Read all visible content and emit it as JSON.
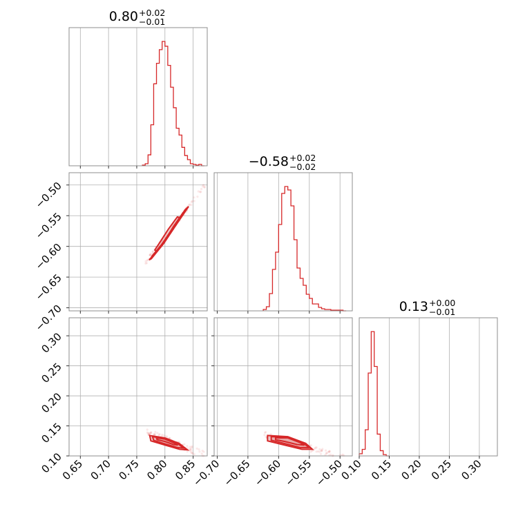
{
  "chart_data": {
    "type": "corner",
    "parameters": [
      {
        "index": 0,
        "title": {
          "median": "0.80",
          "plus": "+0.02",
          "minus": "−0.01"
        },
        "range": [
          0.63,
          0.875
        ],
        "ticks": [
          0.65,
          0.7,
          0.75,
          0.8,
          0.85
        ],
        "tick_labels": [
          "0.65",
          "0.70",
          "0.75",
          "0.80",
          "0.85"
        ],
        "histogram": {
          "bin_edges": [
            0.76,
            0.765,
            0.77,
            0.775,
            0.78,
            0.785,
            0.79,
            0.795,
            0.8,
            0.805,
            0.81,
            0.815,
            0.82,
            0.825,
            0.83,
            0.835,
            0.84,
            0.845,
            0.85,
            0.855,
            0.86,
            0.865,
            0.87
          ],
          "counts": [
            1,
            3,
            16,
            60,
            120,
            150,
            170,
            182,
            175,
            147,
            115,
            85,
            55,
            45,
            27,
            15,
            9,
            3,
            2,
            1,
            2,
            0
          ]
        }
      },
      {
        "index": 1,
        "title": {
          "median": "−0.58",
          "plus": "+0.02",
          "minus": "−0.02"
        },
        "range": [
          -0.705,
          -0.48
        ],
        "ticks": [
          -0.7,
          -0.65,
          -0.6,
          -0.55,
          -0.5
        ],
        "tick_labels": [
          "−0.70",
          "−0.65",
          "−0.60",
          "−0.55",
          "−0.50"
        ],
        "histogram": {
          "bin_edges": [
            -0.625,
            -0.62,
            -0.615,
            -0.61,
            -0.605,
            -0.6,
            -0.595,
            -0.59,
            -0.585,
            -0.58,
            -0.575,
            -0.57,
            -0.565,
            -0.56,
            -0.555,
            -0.55,
            -0.545,
            -0.54,
            -0.535,
            -0.53,
            -0.525,
            -0.52,
            -0.515,
            -0.51,
            -0.505,
            -0.5,
            -0.495,
            -0.49
          ],
          "counts": [
            2,
            6,
            25,
            60,
            85,
            125,
            170,
            180,
            175,
            152,
            103,
            62,
            47,
            37,
            24,
            18,
            10,
            10,
            5,
            3,
            2,
            2,
            1,
            1,
            1,
            1,
            0
          ]
        }
      },
      {
        "index": 2,
        "title": {
          "median": "0.13",
          "plus": "+0.00",
          "minus": "−0.01"
        },
        "range": [
          0.1,
          0.33
        ],
        "ticks": [
          0.1,
          0.15,
          0.2,
          0.25,
          0.3
        ],
        "tick_labels": [
          "0.10",
          "0.15",
          "0.20",
          "0.25",
          "0.30"
        ],
        "histogram": {
          "bin_edges": [
            0.1,
            0.105,
            0.11,
            0.115,
            0.12,
            0.125,
            0.13,
            0.135,
            0.14,
            0.145,
            0.15
          ],
          "counts": [
            5,
            15,
            60,
            190,
            285,
            205,
            50,
            12,
            3,
            0
          ]
        }
      }
    ],
    "pairs": [
      {
        "x_param": 0,
        "y_param": 1,
        "contours": [
          [
            [
              0.785,
              -0.608
            ],
            [
              0.8,
              -0.59
            ],
            [
              0.815,
              -0.568
            ],
            [
              0.826,
              -0.553
            ],
            [
              0.822,
              -0.552
            ],
            [
              0.806,
              -0.572
            ],
            [
              0.792,
              -0.592
            ],
            [
              0.782,
              -0.606
            ]
          ],
          [
            [
              0.776,
              -0.617
            ],
            [
              0.795,
              -0.596
            ],
            [
              0.814,
              -0.57
            ],
            [
              0.832,
              -0.545
            ],
            [
              0.836,
              -0.542
            ],
            [
              0.82,
              -0.563
            ],
            [
              0.8,
              -0.59
            ],
            [
              0.781,
              -0.614
            ]
          ],
          [
            [
              0.772,
              -0.622
            ],
            [
              0.792,
              -0.601
            ],
            [
              0.815,
              -0.569
            ],
            [
              0.836,
              -0.54
            ],
            [
              0.842,
              -0.535
            ],
            [
              0.822,
              -0.562
            ],
            [
              0.798,
              -0.595
            ],
            [
              0.776,
              -0.62
            ]
          ]
        ],
        "scatter_band": {
          "x": [
            0.765,
            0.875
          ],
          "slope": 1.2,
          "intercept": -1.5456,
          "spread": 0.004
        }
      },
      {
        "x_param": 0,
        "y_param": 2,
        "contours": [
          [
            [
              0.785,
              0.13
            ],
            [
              0.8,
              0.128
            ],
            [
              0.815,
              0.122
            ],
            [
              0.823,
              0.118
            ],
            [
              0.815,
              0.119
            ],
            [
              0.8,
              0.124
            ],
            [
              0.786,
              0.127
            ]
          ],
          [
            [
              0.778,
              0.132
            ],
            [
              0.8,
              0.129
            ],
            [
              0.822,
              0.121
            ],
            [
              0.833,
              0.113
            ],
            [
              0.822,
              0.114
            ],
            [
              0.8,
              0.12
            ],
            [
              0.78,
              0.126
            ]
          ],
          [
            [
              0.773,
              0.134
            ],
            [
              0.8,
              0.13
            ],
            [
              0.825,
              0.121
            ],
            [
              0.84,
              0.11
            ],
            [
              0.826,
              0.111
            ],
            [
              0.8,
              0.118
            ],
            [
              0.775,
              0.125
            ]
          ]
        ],
        "scatter_band": {
          "x": [
            0.768,
            0.87
          ],
          "slope": -0.38,
          "intercept": 0.432,
          "spread": 0.006
        }
      },
      {
        "x_param": 1,
        "y_param": 2,
        "contours": [
          [
            [
              -0.605,
              0.13
            ],
            [
              -0.585,
              0.13
            ],
            [
              -0.565,
              0.122
            ],
            [
              -0.558,
              0.118
            ],
            [
              -0.57,
              0.119
            ],
            [
              -0.59,
              0.124
            ],
            [
              -0.605,
              0.127
            ]
          ],
          [
            [
              -0.612,
              0.132
            ],
            [
              -0.585,
              0.131
            ],
            [
              -0.56,
              0.121
            ],
            [
              -0.55,
              0.114
            ],
            [
              -0.565,
              0.114
            ],
            [
              -0.592,
              0.121
            ],
            [
              -0.612,
              0.126
            ]
          ],
          [
            [
              -0.618,
              0.134
            ],
            [
              -0.585,
              0.132
            ],
            [
              -0.556,
              0.121
            ],
            [
              -0.545,
              0.111
            ],
            [
              -0.562,
              0.111
            ],
            [
              -0.594,
              0.119
            ],
            [
              -0.618,
              0.125
            ]
          ]
        ],
        "scatter_band": {
          "x": [
            -0.625,
            -0.49
          ],
          "slope": -0.3,
          "intercept": -0.052,
          "spread": 0.006
        }
      }
    ]
  }
}
